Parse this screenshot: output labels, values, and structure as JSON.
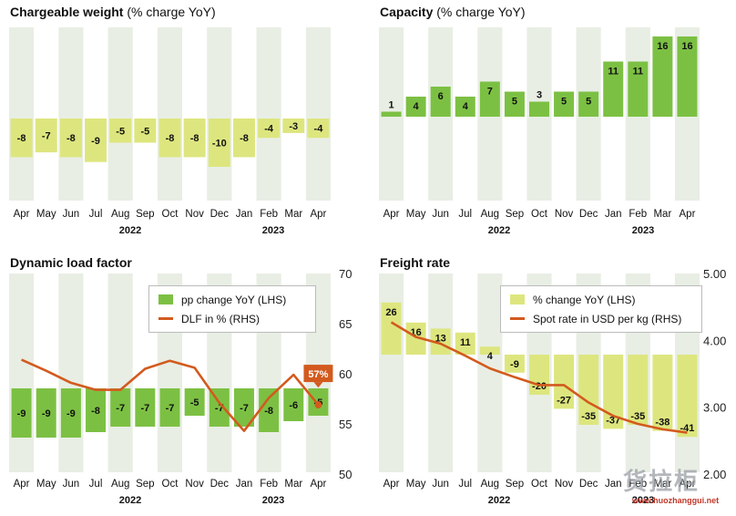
{
  "panels": {
    "cw": {
      "title": "Chargeable weight",
      "subtitle": "(% charge YoY)"
    },
    "cap": {
      "title": "Capacity",
      "subtitle": "(% charge YoY)"
    },
    "dlf": {
      "title": "Dynamic load factor",
      "subtitle": ""
    },
    "fr": {
      "title": "Freight rate",
      "subtitle": ""
    }
  },
  "legends": {
    "dlf": {
      "bar_label": "pp change YoY (LHS)",
      "line_label": "DLF in % (RHS)"
    },
    "fr": {
      "bar_label": "% change YoY (LHS)",
      "line_label": "Spot rate in USD per kg (RHS)"
    }
  },
  "colors": {
    "bar_light": "#dde67e",
    "bar_green": "#7cc043",
    "bar_mid": "#7cc043",
    "line_orange": "#d35a1e",
    "stripe": "#e8eee4"
  },
  "watermark": {
    "text": "货拉柜",
    "url": "www.huozhanggui.net"
  },
  "chart_data": [
    {
      "id": "cw",
      "type": "bar",
      "title": "Chargeable weight",
      "categories": [
        "Apr",
        "May",
        "Jun",
        "Jul",
        "Aug",
        "Sep",
        "Oct",
        "Nov",
        "Dec",
        "Jan",
        "Feb",
        "Mar",
        "Apr"
      ],
      "years": [
        "2022",
        "2023"
      ],
      "values": [
        -8,
        -7,
        -8,
        -9,
        -5,
        -5,
        -8,
        -8,
        -10,
        -8,
        -4,
        -3,
        -4
      ],
      "ylim": [
        -14,
        16
      ]
    },
    {
      "id": "cap",
      "type": "bar",
      "title": "Capacity",
      "categories": [
        "Apr",
        "May",
        "Jun",
        "Jul",
        "Aug",
        "Sep",
        "Oct",
        "Nov",
        "Dec",
        "Jan",
        "Feb",
        "Mar",
        "Apr"
      ],
      "years": [
        "2022",
        "2023"
      ],
      "values": [
        1,
        4,
        6,
        4,
        7,
        5,
        3,
        5,
        5,
        11,
        11,
        16,
        16
      ],
      "ylim": [
        -16,
        17
      ]
    },
    {
      "id": "dlf",
      "type": "bar+line",
      "title": "Dynamic load factor",
      "categories": [
        "Apr",
        "May",
        "Jun",
        "Jul",
        "Aug",
        "Sep",
        "Oct",
        "Nov",
        "Dec",
        "Jan",
        "Feb",
        "Mar",
        "Apr"
      ],
      "years": [
        "2022",
        "2023"
      ],
      "series": [
        {
          "name": "pp change YoY (LHS)",
          "values": [
            -9,
            -9,
            -9,
            -8,
            -7,
            -7,
            -7,
            -5,
            -7,
            -7,
            -8,
            -6,
            -5
          ]
        },
        {
          "name": "DLF in % (RHS)",
          "values": [
            61.4,
            60.3,
            59.1,
            58.4,
            58.4,
            60.5,
            61.3,
            60.6,
            57.1,
            54.3,
            57.6,
            59.9,
            56.9
          ]
        }
      ],
      "y2_ticks": [
        50,
        55,
        60,
        65,
        70
      ],
      "y2lim": [
        50,
        70
      ],
      "annotation": "57%"
    },
    {
      "id": "fr",
      "type": "bar+line",
      "title": "Freight rate",
      "categories": [
        "Apr",
        "May",
        "Jun",
        "Jul",
        "Aug",
        "Sep",
        "Oct",
        "Nov",
        "Dec",
        "Jan",
        "Feb",
        "Mar",
        "Apr"
      ],
      "years": [
        "2022",
        "2023"
      ],
      "series": [
        {
          "name": "% change YoY (LHS)",
          "values": [
            26,
            16,
            13,
            11,
            4,
            -9,
            -20,
            -27,
            -35,
            -37,
            -35,
            -38,
            -41
          ]
        },
        {
          "name": "Spot rate in USD per kg (RHS)",
          "values": [
            4.27,
            4.05,
            3.95,
            3.77,
            3.58,
            3.45,
            3.33,
            3.33,
            3.07,
            2.87,
            2.75,
            2.67,
            2.62
          ]
        }
      ],
      "y2_ticks": [
        "5.00",
        "4.00",
        "3.00",
        "2.00"
      ],
      "y2lim": [
        2,
        5
      ]
    }
  ]
}
